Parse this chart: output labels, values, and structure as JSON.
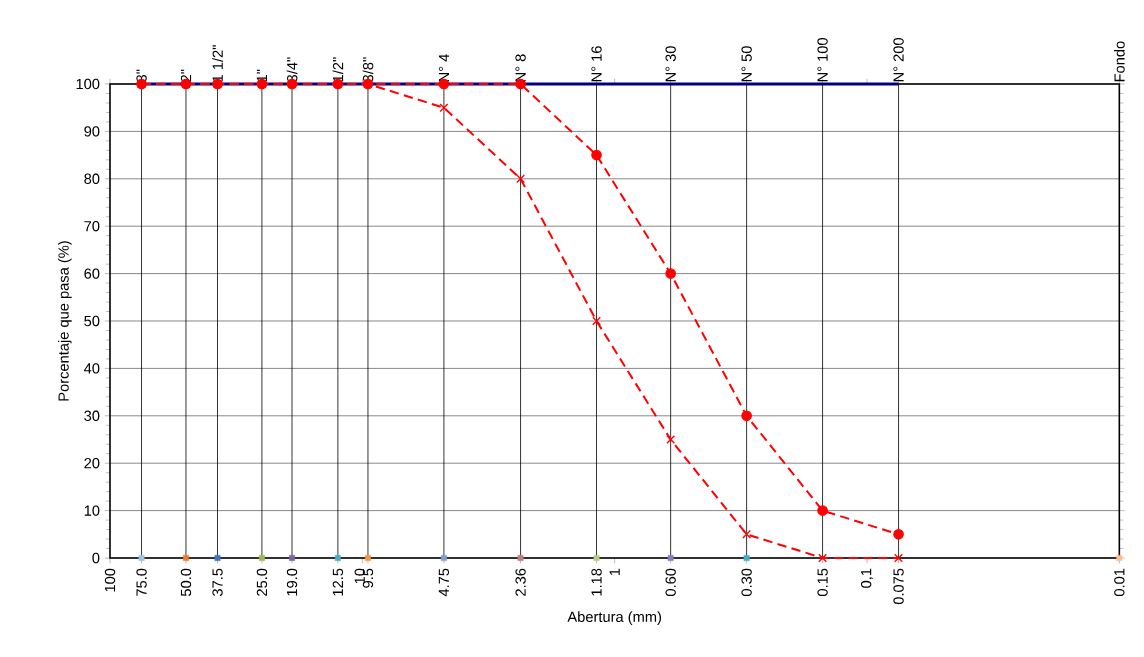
{
  "chart_data": {
    "type": "line",
    "xlabel": "Abertura (mm)",
    "ylabel": "Porcentaje que pasa (%)",
    "log": "x",
    "grid": "y",
    "xlim": [
      100,
      0.01
    ],
    "ylim": [
      0,
      100
    ],
    "yticks": [
      0,
      10,
      20,
      30,
      40,
      50,
      60,
      70,
      80,
      90,
      100
    ],
    "xticks": [
      {
        "value": 100,
        "label": "100"
      },
      {
        "value": 75,
        "label": "75.0"
      },
      {
        "value": 50,
        "label": "50.0"
      },
      {
        "value": 37.5,
        "label": "37.5"
      },
      {
        "value": 25,
        "label": "25.0"
      },
      {
        "value": 19,
        "label": "19.0"
      },
      {
        "value": 12.5,
        "label": "12.5"
      },
      {
        "value": 10,
        "label": "10"
      },
      {
        "value": 9.5,
        "label": "9.5"
      },
      {
        "value": 4.75,
        "label": "4.75"
      },
      {
        "value": 2.36,
        "label": "2.36"
      },
      {
        "value": 1.18,
        "label": "1.18"
      },
      {
        "value": 1,
        "label": "1"
      },
      {
        "value": 0.6,
        "label": "0.60"
      },
      {
        "value": 0.3,
        "label": "0.30"
      },
      {
        "value": 0.15,
        "label": "0.15"
      },
      {
        "value": 0.1,
        "label": "0,1"
      },
      {
        "value": 0.075,
        "label": "0.075"
      },
      {
        "value": 0.01,
        "label": "0.01"
      }
    ],
    "series": [
      {
        "color": "#000080",
        "marker": "none",
        "line_style": "solid",
        "x": [
          75,
          50,
          37.5,
          25,
          19,
          12.5,
          9.5,
          4.75,
          2.36,
          1.18,
          0.6,
          0.3,
          0.15,
          0.075
        ],
        "values": [
          100,
          100,
          100,
          100,
          100,
          100,
          100,
          100,
          100,
          100,
          100,
          100,
          100,
          100
        ]
      },
      {
        "color": "#ff0000",
        "marker": "cross",
        "line_style": "dashed",
        "x": [
          75,
          50,
          37.5,
          25,
          19,
          12.5,
          9.5,
          4.75,
          2.36,
          1.18,
          0.6,
          0.3,
          0.15,
          0.075
        ],
        "values": [
          100,
          100,
          100,
          100,
          100,
          100,
          100,
          95,
          80,
          50,
          25,
          5,
          0,
          0
        ]
      },
      {
        "color": "#ff0000",
        "marker": "circle",
        "line_style": "dashed",
        "x": [
          75,
          50,
          37.5,
          25,
          19,
          12.5,
          9.5,
          4.75,
          2.36,
          1.18,
          0.6,
          0.3,
          0.15,
          0.075
        ],
        "values": [
          100,
          100,
          100,
          100,
          100,
          100,
          100,
          100,
          100,
          85,
          60,
          30,
          10,
          5
        ]
      },
      {
        "type": "scatter",
        "marker": "square",
        "x": [
          75,
          50,
          37.5,
          25,
          19,
          12.5,
          9.5,
          4.75,
          2.36,
          1.18,
          0.6,
          0.3,
          0.01
        ],
        "values": [
          0,
          0,
          0,
          0,
          0,
          0,
          0,
          0,
          0,
          0,
          0,
          0,
          0
        ],
        "colors": [
          "#9dc3e6",
          "#ed7d31",
          "#4472c4",
          "#9bbb59",
          "#8064a2",
          "#4bacc6",
          "#f79646",
          "#7f9fd0",
          "#c0807f",
          "#b3cc8a",
          "#8e7cc3",
          "#4bacc6",
          "#fac090"
        ]
      }
    ],
    "ref_lines": [
      {
        "axis": "x",
        "value": 75
      },
      {
        "axis": "x",
        "value": 50
      },
      {
        "axis": "x",
        "value": 37.5
      },
      {
        "axis": "x",
        "value": 25
      },
      {
        "axis": "x",
        "value": 19
      },
      {
        "axis": "x",
        "value": 12.5
      },
      {
        "axis": "x",
        "value": 9.5
      },
      {
        "axis": "x",
        "value": 4.75
      },
      {
        "axis": "x",
        "value": 2.36
      },
      {
        "axis": "x",
        "value": 1.18
      },
      {
        "axis": "x",
        "value": 0.6
      },
      {
        "axis": "x",
        "value": 0.3
      },
      {
        "axis": "x",
        "value": 0.15
      },
      {
        "axis": "x",
        "value": 0.075
      }
    ],
    "annotations": [
      {
        "text": "3\"",
        "x": 75,
        "y": 100
      },
      {
        "text": "2\"",
        "x": 50,
        "y": 100
      },
      {
        "text": "1 1/2\"",
        "x": 37.5,
        "y": 100
      },
      {
        "text": "1\"",
        "x": 25,
        "y": 100
      },
      {
        "text": "3/4\"",
        "x": 19,
        "y": 100
      },
      {
        "text": "1/2\"",
        "x": 12.5,
        "y": 100
      },
      {
        "text": "3/8\"",
        "x": 9.5,
        "y": 100
      },
      {
        "text": "N° 4",
        "x": 4.75,
        "y": 100
      },
      {
        "text": "N° 8",
        "x": 2.36,
        "y": 100
      },
      {
        "text": "N° 16",
        "x": 1.18,
        "y": 100
      },
      {
        "text": "N° 30",
        "x": 0.6,
        "y": 100
      },
      {
        "text": "N° 50",
        "x": 0.3,
        "y": 100
      },
      {
        "text": "N° 100",
        "x": 0.15,
        "y": 100
      },
      {
        "text": "N° 200",
        "x": 0.075,
        "y": 100
      },
      "Fondo"
    ]
  }
}
